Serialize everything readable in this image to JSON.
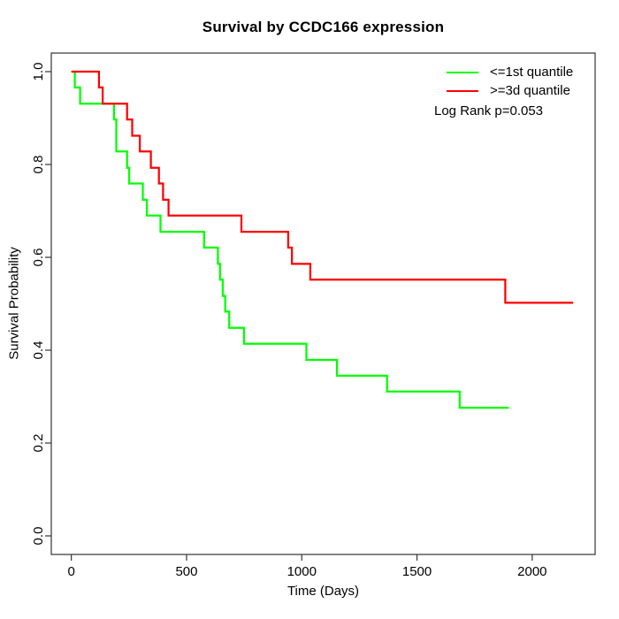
{
  "chart_data": {
    "type": "line",
    "subtype": "kaplan-meier-step",
    "title": "Survival by CCDC166 expression",
    "xlabel": "Time (Days)",
    "ylabel": "Survival Probability",
    "xlim": [
      0,
      2200
    ],
    "ylim": [
      0,
      1
    ],
    "x_ticks": [
      0,
      500,
      1000,
      1500,
      2000
    ],
    "y_ticks": [
      "0.0",
      "0.2",
      "0.4",
      "0.6",
      "0.8",
      "1.0"
    ],
    "grid": false,
    "legend_position": "top-right-inside",
    "annotation": "Log Rank p=0.053",
    "series": [
      {
        "name": "<=1st quantile",
        "color": "#00ff00",
        "end_time": 1899,
        "steps": [
          [
            0,
            1.0
          ],
          [
            15,
            0.966
          ],
          [
            38,
            0.931
          ],
          [
            185,
            0.897
          ],
          [
            195,
            0.828
          ],
          [
            242,
            0.793
          ],
          [
            251,
            0.759
          ],
          [
            310,
            0.724
          ],
          [
            328,
            0.69
          ],
          [
            387,
            0.655
          ],
          [
            576,
            0.621
          ],
          [
            636,
            0.586
          ],
          [
            645,
            0.552
          ],
          [
            657,
            0.517
          ],
          [
            668,
            0.483
          ],
          [
            685,
            0.448
          ],
          [
            749,
            0.414
          ],
          [
            1020,
            0.379
          ],
          [
            1153,
            0.345
          ],
          [
            1370,
            0.311
          ],
          [
            1685,
            0.276
          ]
        ]
      },
      {
        "name": ">=3d quantile",
        "color": "#ff0000",
        "end_time": 2178,
        "steps": [
          [
            0,
            1.0
          ],
          [
            120,
            0.966
          ],
          [
            136,
            0.931
          ],
          [
            242,
            0.897
          ],
          [
            264,
            0.862
          ],
          [
            297,
            0.828
          ],
          [
            345,
            0.793
          ],
          [
            380,
            0.759
          ],
          [
            398,
            0.724
          ],
          [
            422,
            0.69
          ],
          [
            738,
            0.655
          ],
          [
            941,
            0.621
          ],
          [
            957,
            0.586
          ],
          [
            1037,
            0.552
          ],
          [
            1883,
            0.502
          ]
        ]
      }
    ],
    "colors": {
      "axis": "#333333",
      "text": "#000000"
    }
  }
}
